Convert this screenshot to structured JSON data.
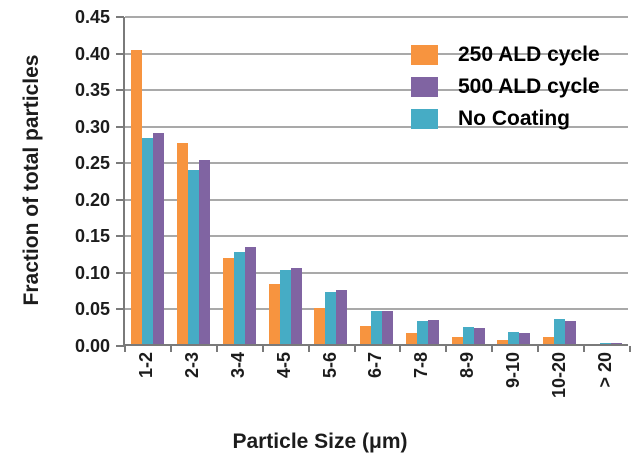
{
  "chart_data": {
    "type": "bar",
    "title": "",
    "xlabel": "Particle Size (μm)",
    "ylabel": "Fraction of total particles",
    "categories": [
      "1-2",
      "2-3",
      "3-4",
      "4-5",
      "5-6",
      "6-7",
      "7-8",
      "8-9",
      "9-10",
      "10-20",
      "> 20"
    ],
    "series": [
      {
        "name": "250 ALD cycle",
        "color": "#F7943F",
        "values": [
          0.405,
          0.277,
          0.119,
          0.082,
          0.049,
          0.025,
          0.015,
          0.01,
          0.006,
          0.01,
          0.0
        ]
      },
      {
        "name": "No Coating",
        "color": "#46ACC5",
        "values": [
          0.284,
          0.24,
          0.127,
          0.102,
          0.071,
          0.046,
          0.032,
          0.024,
          0.017,
          0.035,
          0.001
        ]
      },
      {
        "name": "500 ALD cycle",
        "color": "#8064A2",
        "values": [
          0.291,
          0.253,
          0.134,
          0.104,
          0.075,
          0.046,
          0.033,
          0.022,
          0.015,
          0.031,
          0.001
        ]
      }
    ],
    "legend_order": [
      "250 ALD cycle",
      "500 ALD cycle",
      "No Coating"
    ],
    "legend_position": "top-right",
    "ylim": [
      0,
      0.45
    ],
    "ytick_step": 0.05,
    "yticks": [
      "0.00",
      "0.05",
      "0.10",
      "0.15",
      "0.20",
      "0.25",
      "0.30",
      "0.35",
      "0.40",
      "0.45"
    ],
    "grid": "horizontal",
    "colors": {
      "gridline": "#a9a9a9",
      "axis": "#7a7a7a",
      "text": "#1c1c1c",
      "background": "#ffffff"
    }
  }
}
